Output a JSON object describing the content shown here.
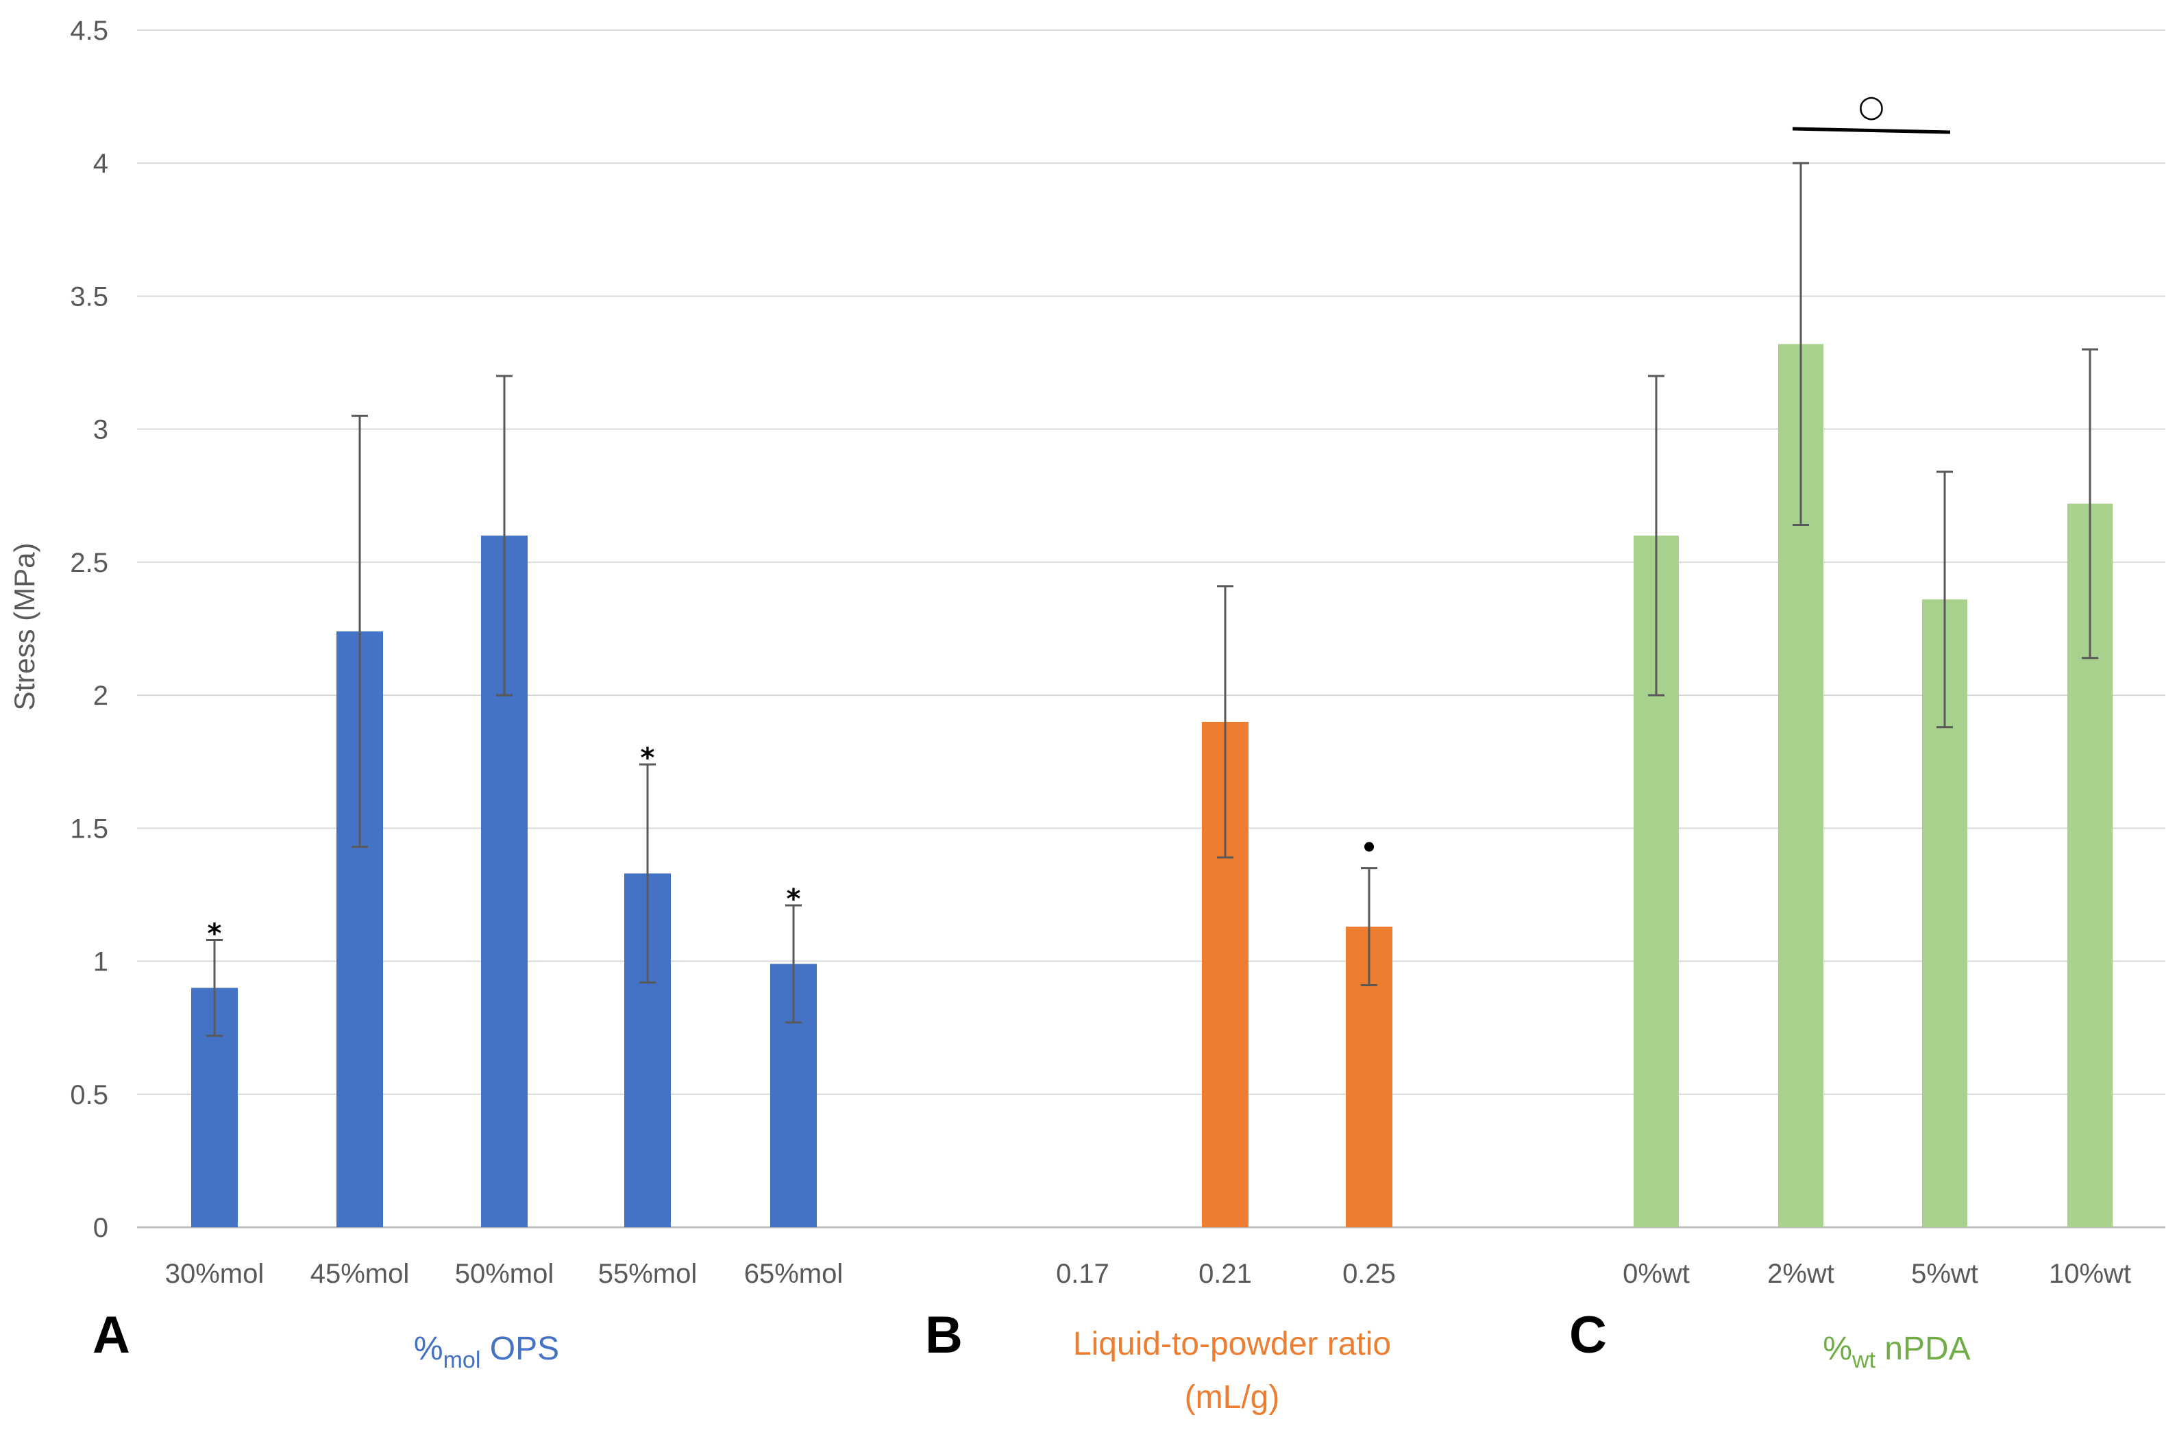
{
  "chart_data": {
    "type": "bar",
    "ylabel": "Stress (MPa)",
    "ylim": [
      0,
      4.5
    ],
    "yticks": [
      0,
      0.5,
      1,
      1.5,
      2,
      2.5,
      3,
      3.5,
      4,
      4.5
    ],
    "ytick_labels": [
      "0",
      "0.5",
      "1",
      "1.5",
      "2",
      "2.5",
      "3",
      "3.5",
      "4",
      "4.5"
    ],
    "grid": true,
    "groups": [
      {
        "panel": "A",
        "label_pre": "%",
        "label_sub": "mol",
        "label_post": " OPS",
        "color": "#4472C4",
        "label_color": "#4472C4",
        "categories": [
          "30%mol",
          "45%mol",
          "50%mol",
          "55%mol",
          "65%mol"
        ],
        "values": [
          0.9,
          2.24,
          2.6,
          1.33,
          0.99
        ],
        "errors": [
          0.18,
          0.81,
          0.6,
          0.41,
          0.22
        ],
        "markers": [
          "*",
          "",
          "",
          "*",
          "*"
        ]
      },
      {
        "panel": "B",
        "label_lines": [
          "Liquid-to-powder ratio",
          "(mL/g)"
        ],
        "color": "#ED7D31",
        "label_color": "#ED7D31",
        "categories": [
          "0.17",
          "0.21",
          "0.25"
        ],
        "values": [
          null,
          1.9,
          1.13
        ],
        "errors": [
          null,
          0.51,
          0.22
        ],
        "markers": [
          "",
          "",
          "•"
        ]
      },
      {
        "panel": "C",
        "label_pre": "%",
        "label_sub": "wt",
        "label_post": " nPDA",
        "color": "#A9D18E",
        "label_color": "#70AD47",
        "categories": [
          "0%wt",
          "2%wt",
          "5%wt",
          "10%wt"
        ],
        "values": [
          2.6,
          3.32,
          2.36,
          2.72
        ],
        "errors": [
          0.6,
          0.68,
          0.48,
          0.58
        ],
        "markers": [
          "",
          "",
          "",
          ""
        ],
        "bracket": {
          "from": "2%wt",
          "to": "5%wt",
          "symbol": "○"
        }
      }
    ]
  }
}
